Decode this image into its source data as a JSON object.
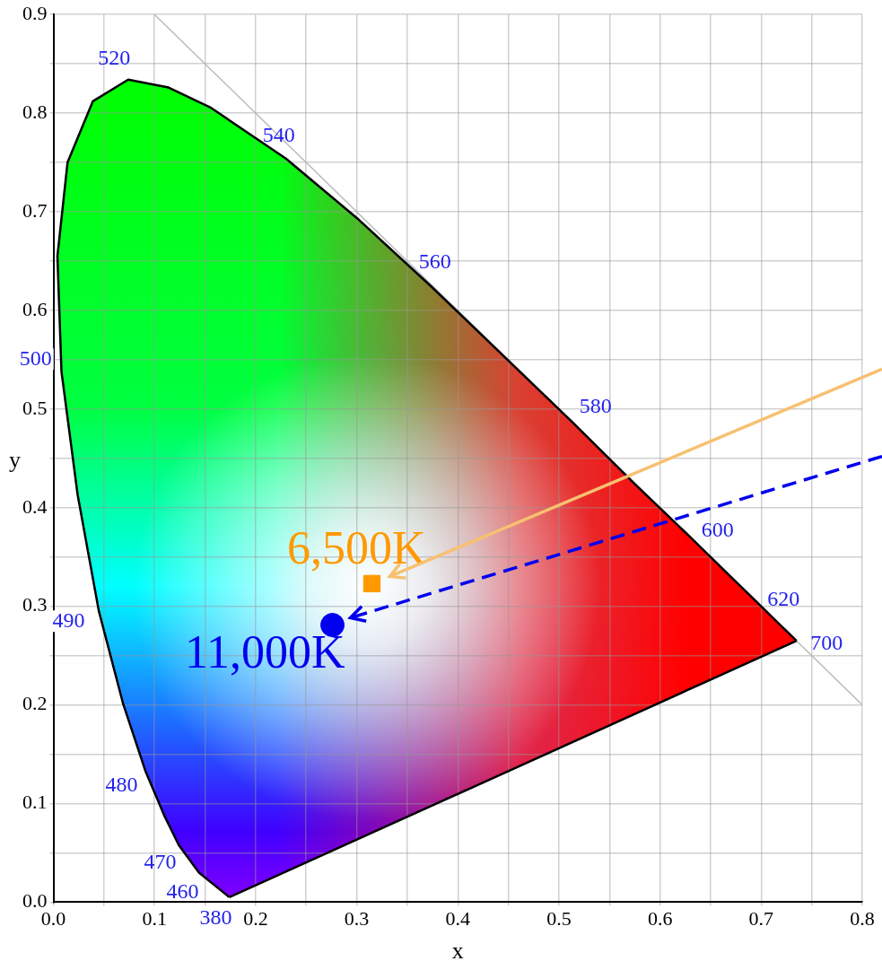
{
  "chart_data": {
    "type": "line",
    "xlabel": "x",
    "ylabel": "y",
    "legend": false,
    "grid": true,
    "xlim": [
      0,
      0.8
    ],
    "ylim": [
      0,
      0.9
    ],
    "xticks": [
      {
        "value": 0,
        "label": "0.0"
      },
      {
        "value": 0.05,
        "label": null
      },
      {
        "value": 0.1,
        "label": "0.1"
      },
      {
        "value": 0.15,
        "label": null
      },
      {
        "value": 0.2,
        "label": "0.2"
      },
      {
        "value": 0.25,
        "label": null
      },
      {
        "value": 0.3,
        "label": "0.3"
      },
      {
        "value": 0.35,
        "label": null
      },
      {
        "value": 0.4,
        "label": "0.4"
      },
      {
        "value": 0.45,
        "label": null
      },
      {
        "value": 0.5,
        "label": "0.5"
      },
      {
        "value": 0.55,
        "label": null
      },
      {
        "value": 0.6,
        "label": "0.6"
      },
      {
        "value": 0.65,
        "label": null
      },
      {
        "value": 0.7,
        "label": "0.7"
      },
      {
        "value": 0.75,
        "label": null
      },
      {
        "value": 0.8,
        "label": "0.8"
      }
    ],
    "yticks": [
      {
        "value": 0,
        "label": "0.0"
      },
      {
        "value": 0.05,
        "label": null
      },
      {
        "value": 0.1,
        "label": "0.1"
      },
      {
        "value": 0.15,
        "label": null
      },
      {
        "value": 0.2,
        "label": "0.2"
      },
      {
        "value": 0.25,
        "label": null
      },
      {
        "value": 0.3,
        "label": "0.3"
      },
      {
        "value": 0.35,
        "label": null
      },
      {
        "value": 0.4,
        "label": "0.4"
      },
      {
        "value": 0.45,
        "label": null
      },
      {
        "value": 0.5,
        "label": "0.5"
      },
      {
        "value": 0.55,
        "label": null
      },
      {
        "value": 0.6,
        "label": "0.6"
      },
      {
        "value": 0.65,
        "label": null
      },
      {
        "value": 0.7,
        "label": "0.7"
      },
      {
        "value": 0.75,
        "label": null
      },
      {
        "value": 0.8,
        "label": "0.8"
      },
      {
        "value": 0.85,
        "label": null
      },
      {
        "value": 0.9,
        "label": "0.9"
      }
    ],
    "series": [
      {
        "type": "line",
        "color": "#000000",
        "line_style": "solid",
        "marker": "none",
        "x": [
          0.174,
          0.144,
          0.124,
          0.11,
          0.091,
          0.069,
          0.045,
          0.024,
          0.008,
          0.004,
          0.014,
          0.039,
          0.074,
          0.114,
          0.155,
          0.23,
          0.302,
          0.373,
          0.444,
          0.513,
          0.575,
          0.627,
          0.666,
          0.692,
          0.719,
          0.73,
          0.735
        ],
        "values": [
          0.005,
          0.03,
          0.058,
          0.087,
          0.133,
          0.201,
          0.295,
          0.413,
          0.538,
          0.655,
          0.75,
          0.812,
          0.834,
          0.826,
          0.806,
          0.754,
          0.692,
          0.625,
          0.555,
          0.487,
          0.424,
          0.373,
          0.334,
          0.308,
          0.281,
          0.27,
          0.265
        ]
      },
      {
        "type": "line",
        "color": "#bbbbbb",
        "line_style": "solid",
        "marker": "none",
        "x": [
          0.1,
          0.8
        ],
        "values": [
          0.9,
          0.2
        ]
      },
      {
        "type": "scatter",
        "name": "6,500K",
        "color": "#ff9900",
        "marker": "square",
        "x": [
          0.315
        ],
        "values": [
          0.323
        ]
      },
      {
        "type": "scatter",
        "name": "11,000K",
        "color": "#0000ee",
        "marker": "circle",
        "x": [
          0.276
        ],
        "values": [
          0.281
        ]
      }
    ],
    "annotations": [
      {
        "text": "380",
        "x": 0.174,
        "y": 0.005
      },
      {
        "text": "460",
        "x": 0.144,
        "y": 0.03
      },
      {
        "text": "470",
        "x": 0.124,
        "y": 0.058
      },
      {
        "text": "480",
        "x": 0.091,
        "y": 0.133
      },
      {
        "text": "490",
        "x": 0.045,
        "y": 0.295
      },
      {
        "text": "500",
        "x": 0.008,
        "y": 0.538
      },
      {
        "text": "520",
        "x": 0.074,
        "y": 0.834
      },
      {
        "text": "540",
        "x": 0.23,
        "y": 0.754
      },
      {
        "text": "560",
        "x": 0.373,
        "y": 0.625
      },
      {
        "text": "580",
        "x": 0.513,
        "y": 0.487
      },
      {
        "text": "600",
        "x": 0.627,
        "y": 0.373
      },
      {
        "text": "620",
        "x": 0.692,
        "y": 0.308
      },
      {
        "text": "700",
        "x": 0.735,
        "y": 0.265
      }
    ]
  }
}
